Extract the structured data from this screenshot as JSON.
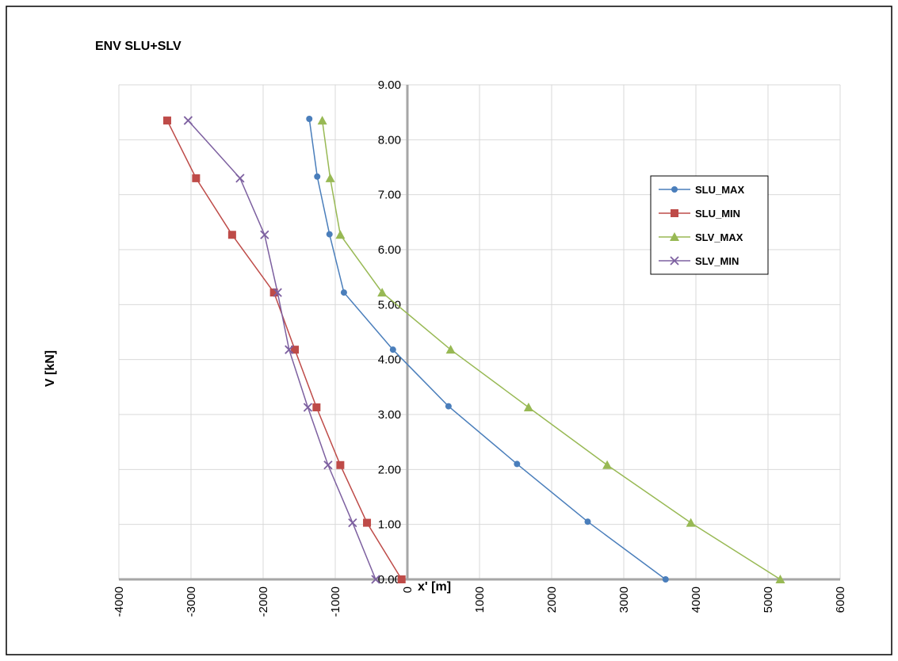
{
  "chart_data": {
    "type": "scatter",
    "title": "ENV SLU+SLV",
    "xlabel": "x' [m]",
    "ylabel": "V [kN]",
    "xlim": [
      -4000,
      6000
    ],
    "ylim": [
      0,
      9
    ],
    "x_ticks": [
      -4000,
      -3000,
      -2000,
      -1000,
      0,
      1000,
      2000,
      3000,
      4000,
      5000,
      6000
    ],
    "x_tick_labels": [
      "-4000",
      "-3000",
      "-2000",
      "-1000",
      "0",
      "1000",
      "2000",
      "3000",
      "4000",
      "5000",
      "6000"
    ],
    "y_ticks": [
      0,
      1,
      2,
      3,
      4,
      5,
      6,
      7,
      8,
      9
    ],
    "y_tick_labels": [
      "0.00",
      "1.00",
      "2.00",
      "3.00",
      "4.00",
      "5.00",
      "6.00",
      "7.00",
      "8.00",
      "9.00"
    ],
    "grid": true,
    "legend_position": "right",
    "series": [
      {
        "name": "SLU_MAX",
        "color": "#4a7ebb",
        "marker": "circle",
        "points": [
          [
            3580,
            0.0
          ],
          [
            2500,
            1.05
          ],
          [
            1520,
            2.1
          ],
          [
            570,
            3.15
          ],
          [
            -200,
            4.18
          ],
          [
            -880,
            5.22
          ],
          [
            -1080,
            6.28
          ],
          [
            -1250,
            7.33
          ],
          [
            -1360,
            8.38
          ]
        ]
      },
      {
        "name": "SLU_MIN",
        "color": "#be4b48",
        "marker": "square",
        "points": [
          [
            -80,
            0.0
          ],
          [
            -560,
            1.03
          ],
          [
            -930,
            2.08
          ],
          [
            -1260,
            3.13
          ],
          [
            -1560,
            4.18
          ],
          [
            -1850,
            5.22
          ],
          [
            -2430,
            6.27
          ],
          [
            -2930,
            7.3
          ],
          [
            -3330,
            8.35
          ]
        ]
      },
      {
        "name": "SLV_MAX",
        "color": "#98b954",
        "marker": "triangle",
        "points": [
          [
            5170,
            0.0
          ],
          [
            3930,
            1.03
          ],
          [
            2770,
            2.08
          ],
          [
            1680,
            3.13
          ],
          [
            600,
            4.18
          ],
          [
            -350,
            5.22
          ],
          [
            -930,
            6.27
          ],
          [
            -1070,
            7.3
          ],
          [
            -1180,
            8.35
          ]
        ]
      },
      {
        "name": "SLV_MIN",
        "color": "#7d60a0",
        "marker": "x",
        "points": [
          [
            -440,
            0.0
          ],
          [
            -760,
            1.03
          ],
          [
            -1100,
            2.08
          ],
          [
            -1380,
            3.13
          ],
          [
            -1640,
            4.18
          ],
          [
            -1800,
            5.22
          ],
          [
            -1980,
            6.27
          ],
          [
            -2320,
            7.3
          ],
          [
            -3040,
            8.35
          ]
        ]
      }
    ]
  }
}
